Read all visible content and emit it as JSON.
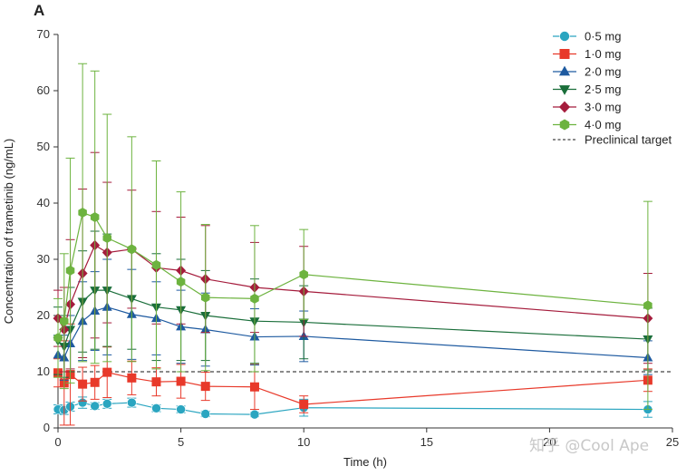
{
  "panel_label": "A",
  "watermark": "知乎 @Cool Ape",
  "chart_data": {
    "type": "line",
    "xlabel": "Time (h)",
    "ylabel": "Concentration of trametinib (ng/mL)",
    "xlim": [
      0,
      25
    ],
    "ylim": [
      0,
      70
    ],
    "xticks": [
      0,
      5,
      10,
      15,
      20,
      25
    ],
    "yticks": [
      0,
      10,
      20,
      30,
      40,
      50,
      60,
      70
    ],
    "legend_position": "top-right",
    "reference_line": {
      "label": "Preclinical target",
      "y": 10,
      "style": "dashed",
      "color": "#444444"
    },
    "series": [
      {
        "name": "0·5 mg",
        "color": "#2aa5c0",
        "marker": "circle",
        "x": [
          0,
          0.25,
          0.5,
          1,
          1.5,
          2,
          3,
          4,
          5,
          6,
          8,
          10,
          24
        ],
        "y": [
          3.3,
          3.2,
          3.8,
          4.5,
          3.9,
          4.3,
          4.5,
          3.5,
          3.3,
          2.5,
          2.4,
          3.6,
          3.3
        ],
        "err": [
          0.8,
          0.8,
          0.8,
          1.0,
          0.6,
          0.8,
          0.8,
          0.6,
          0.6,
          0.5,
          0.4,
          1.5,
          1.4
        ]
      },
      {
        "name": "1·0 mg",
        "color": "#e8392a",
        "marker": "square",
        "x": [
          0,
          0.25,
          0.5,
          1,
          1.5,
          2,
          3,
          4,
          5,
          6,
          8,
          10,
          24
        ],
        "y": [
          9.8,
          8.0,
          9.5,
          7.8,
          8.1,
          9.9,
          8.9,
          8.2,
          8.3,
          7.4,
          7.3,
          4.2,
          8.5
        ],
        "err": [
          2.5,
          7.5,
          9.0,
          3.0,
          3.0,
          4.5,
          3.0,
          2.5,
          3.0,
          2.5,
          4.0,
          1.5,
          2.0
        ]
      },
      {
        "name": "2·0 mg",
        "color": "#1e5aa0",
        "marker": "triangle-up",
        "x": [
          0,
          0.25,
          0.5,
          1,
          1.5,
          2,
          3,
          4,
          5,
          6,
          8,
          10,
          24
        ],
        "y": [
          13.0,
          12.5,
          15.0,
          19.0,
          20.8,
          21.5,
          20.2,
          19.5,
          18.0,
          17.5,
          16.2,
          16.3,
          12.5
        ],
        "err": [
          3.5,
          4.0,
          5.0,
          7.0,
          7.0,
          8.5,
          8.0,
          6.5,
          6.5,
          6.5,
          5.0,
          4.5,
          3.0
        ]
      },
      {
        "name": "2·5 mg",
        "color": "#1a6e3a",
        "marker": "triangle-down",
        "x": [
          0,
          0.25,
          0.5,
          1,
          1.5,
          2,
          3,
          4,
          5,
          6,
          8,
          10,
          24
        ],
        "y": [
          15.5,
          14.5,
          17.5,
          22.5,
          24.5,
          24.5,
          23.0,
          21.5,
          21.0,
          20.0,
          19.0,
          18.8,
          15.8
        ],
        "err": [
          6.0,
          5.5,
          7.5,
          9.0,
          10.5,
          10.0,
          9.0,
          9.5,
          9.0,
          8.0,
          7.5,
          6.5,
          5.5
        ]
      },
      {
        "name": "3·0 mg",
        "color": "#a51c3c",
        "marker": "diamond",
        "x": [
          0,
          0.25,
          0.5,
          1,
          1.5,
          2,
          3,
          4,
          5,
          6,
          8,
          10,
          24
        ],
        "y": [
          19.5,
          17.5,
          22.0,
          27.5,
          32.5,
          31.2,
          31.8,
          28.5,
          28.0,
          26.5,
          25.0,
          24.3,
          19.5
        ],
        "err": [
          5.0,
          7.5,
          11.5,
          15.0,
          16.5,
          12.5,
          10.5,
          10.0,
          9.5,
          9.5,
          8.0,
          8.0,
          8.0
        ]
      },
      {
        "name": "4·0 mg",
        "color": "#6db33f",
        "marker": "hexagon",
        "x": [
          0,
          0.25,
          0.5,
          1,
          1.5,
          2,
          3,
          4,
          5,
          6,
          8,
          10,
          24
        ],
        "y": [
          16.0,
          19.0,
          28.0,
          38.3,
          37.5,
          33.8,
          31.8,
          29.0,
          26.0,
          23.2,
          23.0,
          27.3,
          21.8
        ],
        "err": [
          7.0,
          12.0,
          20.0,
          26.5,
          26.0,
          22.0,
          20.0,
          18.5,
          16.0,
          13.0,
          13.0,
          8.0,
          18.5
        ]
      }
    ]
  }
}
